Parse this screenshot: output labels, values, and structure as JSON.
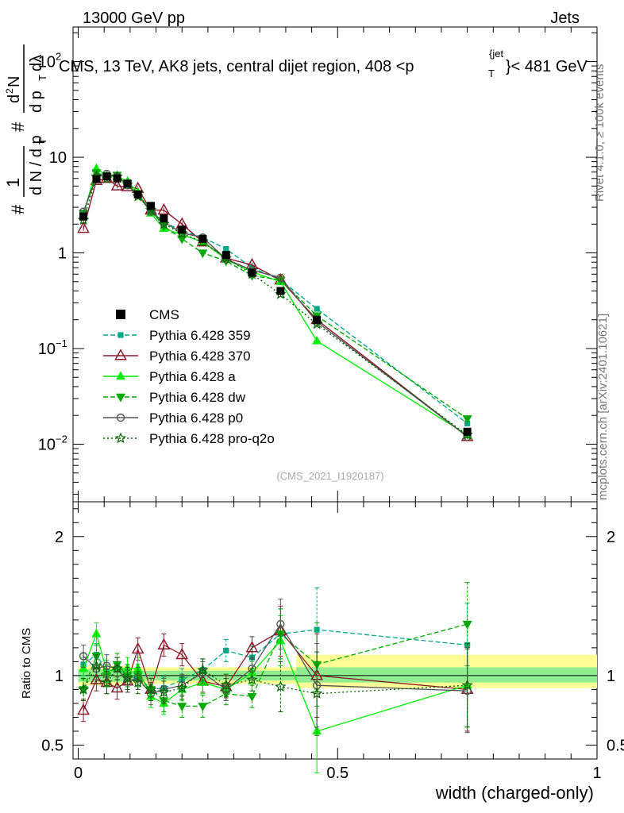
{
  "header": {
    "left": "13000 GeV pp",
    "right": "Jets",
    "side_top": "Rivet 4.1.0, ≥ 100k events",
    "side_bottom": "mcplots.cern.ch [arXiv:2401.10621]",
    "watermark": "(CMS_2021_I1920187)"
  },
  "chart_data": [
    {
      "type": "line",
      "yscale": "log",
      "title_parts": [
        "CMS, 13 TeV, AK8 jets, central dijet region, 408 <p",
        "T",
        "{jet",
        "}< 481 GeV"
      ],
      "ylabel_parts": [
        "#",
        "1",
        "d N / d p",
        "T",
        "#",
        "d",
        "2",
        "N",
        "d p",
        "T",
        "dλ"
      ],
      "xlim": [
        -0.01,
        1.0
      ],
      "ylim": [
        0.0025,
        230
      ],
      "yticks": [
        {
          "value": 100,
          "base": "10",
          "exp": "2"
        },
        {
          "value": 10,
          "base": "10",
          "exp": ""
        },
        {
          "value": 1,
          "base": "1",
          "exp": ""
        },
        {
          "value": 0.1,
          "base": "10",
          "exp": "−1"
        },
        {
          "value": 0.01,
          "base": "10",
          "exp": "−2"
        }
      ],
      "x": [
        0.01,
        0.035,
        0.055,
        0.075,
        0.095,
        0.115,
        0.14,
        0.165,
        0.2,
        0.24,
        0.285,
        0.335,
        0.39,
        0.46,
        0.75
      ],
      "series": [
        {
          "name": "CMS",
          "color": "#000000",
          "marker": "square",
          "dash": "none",
          "line": false,
          "values": [
            2.4,
            5.9,
            6.3,
            6.0,
            5.3,
            4.1,
            3.1,
            2.3,
            1.75,
            1.4,
            0.95,
            0.62,
            0.4,
            0.2,
            0.0135
          ]
        },
        {
          "name": "Pythia 6.428 359",
          "color": "#00aa88",
          "marker": "square-small",
          "dash": "6,3",
          "line": true,
          "values": [
            2.6,
            6.8,
            6.5,
            6.3,
            5.3,
            4.0,
            2.8,
            2.1,
            1.7,
            1.45,
            1.1,
            0.7,
            0.52,
            0.26,
            0.0165
          ]
        },
        {
          "name": "Pythia 6.428 370",
          "color": "#8b1a2b",
          "marker": "triangle-open",
          "dash": "none",
          "line": true,
          "values": [
            1.8,
            5.7,
            6.0,
            5.0,
            4.9,
            4.7,
            2.8,
            2.8,
            2.0,
            1.3,
            0.88,
            0.75,
            0.52,
            0.2,
            0.012
          ]
        },
        {
          "name": "Pythia 6.428 a",
          "color": "#00ee00",
          "marker": "triangle-filled",
          "dash": "none",
          "line": true,
          "values": [
            2.5,
            7.6,
            6.5,
            6.3,
            5.6,
            4.3,
            2.6,
            1.8,
            1.55,
            1.3,
            0.86,
            0.63,
            0.5,
            0.12,
            0.0125
          ]
        },
        {
          "name": "Pythia 6.428 dw",
          "color": "#00aa00",
          "marker": "triangle-down",
          "dash": "6,3",
          "line": true,
          "values": [
            2.6,
            6.9,
            6.3,
            6.5,
            5.3,
            4.1,
            2.8,
            1.9,
            1.4,
            1.0,
            0.82,
            0.58,
            0.52,
            0.22,
            0.0185
          ]
        },
        {
          "name": "Pythia 6.428 p0",
          "color": "#555555",
          "marker": "circle-open",
          "dash": "none",
          "line": true,
          "values": [
            2.7,
            6.2,
            6.7,
            6.3,
            5.1,
            4.0,
            2.7,
            2.1,
            1.62,
            1.45,
            0.86,
            0.66,
            0.55,
            0.19,
            0.012
          ]
        },
        {
          "name": "Pythia 6.428 pro-q2o",
          "color": "#006600",
          "marker": "star",
          "dash": "2,3",
          "line": true,
          "values": [
            2.2,
            6.3,
            6.0,
            6.3,
            5.2,
            3.9,
            2.8,
            2.0,
            1.6,
            1.3,
            0.88,
            0.6,
            0.37,
            0.18,
            0.0125
          ]
        }
      ]
    },
    {
      "type": "line",
      "ylabel": "Ratio to CMS",
      "xlabel": "width (charged-only)",
      "xlim": [
        -0.01,
        1.0
      ],
      "ylim": [
        0.4,
        2.25
      ],
      "yticks": [
        {
          "value": 0.5,
          "label": "0.5"
        },
        {
          "value": 1,
          "label": "1"
        },
        {
          "value": 2,
          "label": "2"
        }
      ],
      "xticks": [
        {
          "value": 0,
          "label": "0"
        },
        {
          "value": 0.5,
          "label": "0.5"
        },
        {
          "value": 1,
          "label": "1"
        }
      ],
      "bands": [
        {
          "x0": 0.0,
          "x1": 0.1,
          "lo": 0.955,
          "hi": 1.045,
          "color": "#90ee90"
        },
        {
          "x0": 0.0,
          "x1": 0.1,
          "lo": 0.93,
          "hi": 1.07,
          "color": "#fdfd96"
        },
        {
          "x0": 0.1,
          "x1": 0.42,
          "lo": 0.965,
          "hi": 1.035,
          "color": "#90ee90"
        },
        {
          "x0": 0.1,
          "x1": 0.42,
          "lo": 0.94,
          "hi": 1.06,
          "color": "#fdfd96"
        },
        {
          "x0": 0.42,
          "x1": 1.0,
          "lo": 0.95,
          "hi": 1.06,
          "color": "#90ee90"
        },
        {
          "x0": 0.42,
          "x1": 1.0,
          "lo": 0.91,
          "hi": 1.15,
          "color": "#fdfd96"
        }
      ],
      "x": [
        0.01,
        0.035,
        0.055,
        0.075,
        0.095,
        0.115,
        0.14,
        0.165,
        0.2,
        0.24,
        0.285,
        0.335,
        0.39,
        0.46,
        0.75
      ],
      "series": [
        {
          "name": "Pythia 6.428 359",
          "color": "#00aa88",
          "marker": "square-small",
          "dash": "6,3",
          "values": [
            1.08,
            1.15,
            1.03,
            1.05,
            1.0,
            0.98,
            0.9,
            0.91,
            0.97,
            1.04,
            1.18,
            1.13,
            1.3,
            1.33,
            1.22
          ]
        },
        {
          "name": "Pythia 6.428 370",
          "color": "#8b1a2b",
          "marker": "triangle-open",
          "dash": "none",
          "values": [
            0.75,
            0.97,
            0.95,
            0.91,
            0.96,
            1.19,
            0.9,
            1.22,
            1.15,
            0.96,
            0.92,
            1.2,
            1.32,
            1.0,
            0.9
          ]
        },
        {
          "name": "Pythia 6.428 a",
          "color": "#00ee00",
          "marker": "triangle-filled",
          "dash": "none",
          "values": [
            1.05,
            1.3,
            1.03,
            1.05,
            1.05,
            1.05,
            0.85,
            0.8,
            0.9,
            0.95,
            0.9,
            1.02,
            1.25,
            0.6,
            0.93
          ]
        },
        {
          "name": "Pythia 6.428 dw",
          "color": "#00aa00",
          "marker": "triangle-down",
          "dash": "6,3",
          "values": [
            0.9,
            1.14,
            1.0,
            1.08,
            1.0,
            1.0,
            0.9,
            0.82,
            0.78,
            0.78,
            0.87,
            0.85,
            1.3,
            1.08,
            1.37
          ]
        },
        {
          "name": "Pythia 6.428 p0",
          "color": "#555555",
          "marker": "circle-open",
          "dash": "none",
          "values": [
            1.14,
            1.05,
            1.07,
            1.05,
            0.96,
            0.98,
            0.87,
            0.9,
            0.93,
            1.02,
            0.9,
            1.05,
            1.37,
            0.93,
            0.89
          ]
        },
        {
          "name": "Pythia 6.428 pro-q2o",
          "color": "#006600",
          "marker": "star",
          "dash": "2,3",
          "values": [
            0.9,
            1.07,
            0.95,
            1.05,
            0.98,
            0.95,
            0.9,
            0.88,
            0.91,
            1.04,
            0.93,
            0.97,
            0.92,
            0.87,
            0.93
          ]
        }
      ]
    }
  ]
}
